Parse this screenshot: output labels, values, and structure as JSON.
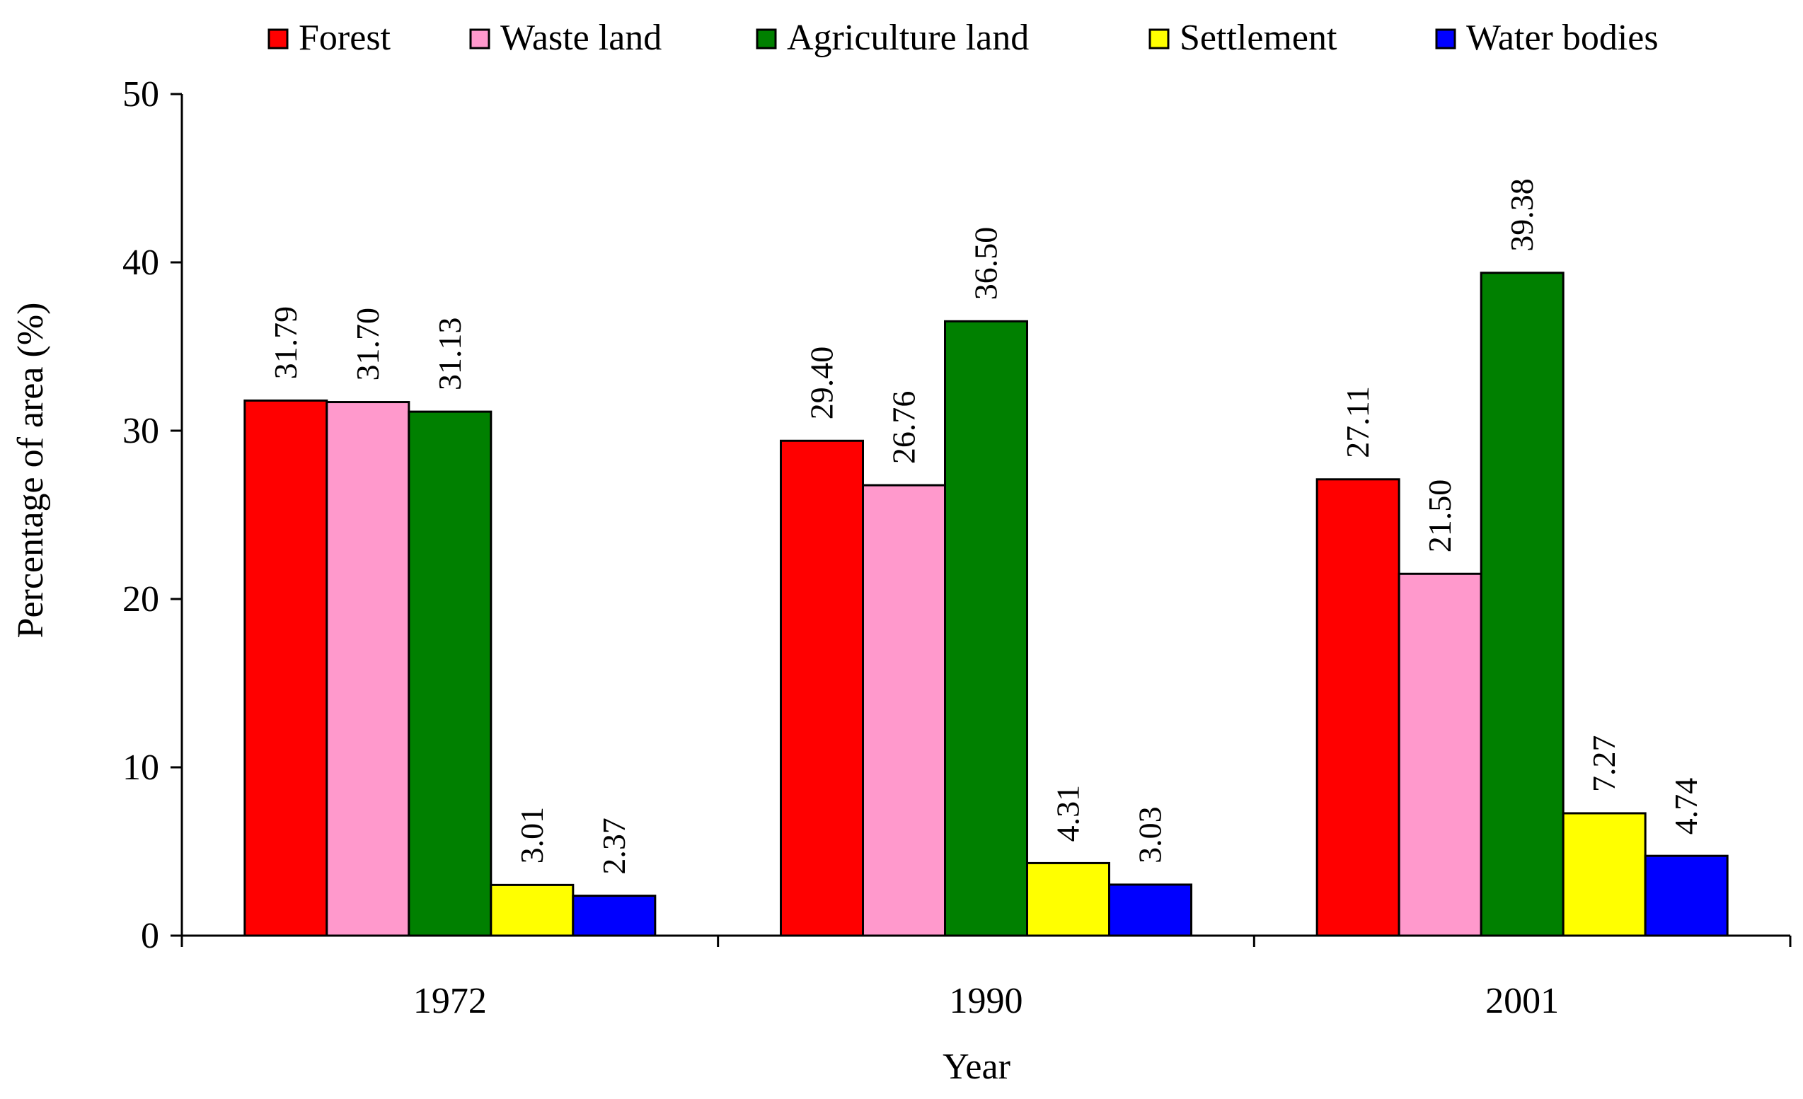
{
  "chart_data": {
    "type": "bar",
    "title": "",
    "xlabel": "Year",
    "ylabel": "Percentage of area (%)",
    "ylim": [
      0,
      50
    ],
    "yticks": [
      0,
      10,
      20,
      30,
      40,
      50
    ],
    "grid": false,
    "legend_position": "top",
    "categories": [
      "1972",
      "1990",
      "2001"
    ],
    "series": [
      {
        "name": "Forest",
        "color": "#ff0000",
        "values": [
          31.79,
          29.4,
          27.11
        ],
        "labels": [
          "31.79",
          "29.40",
          "27.11"
        ]
      },
      {
        "name": "Waste land",
        "color": "#ff99cc",
        "values": [
          31.7,
          26.76,
          21.5
        ],
        "labels": [
          "31.70",
          "26.76",
          "21.50"
        ]
      },
      {
        "name": "Agriculture land",
        "color": "#008000",
        "values": [
          31.13,
          36.5,
          39.38
        ],
        "labels": [
          "31.13",
          "36.50",
          "39.38"
        ]
      },
      {
        "name": "Settlement",
        "color": "#ffff00",
        "values": [
          3.01,
          4.31,
          7.27
        ],
        "labels": [
          "3.01",
          "4.31",
          "7.27"
        ]
      },
      {
        "name": "Water bodies",
        "color": "#0000ff",
        "values": [
          2.37,
          3.03,
          4.74
        ],
        "labels": [
          "2.37",
          "3.03",
          "4.74"
        ]
      }
    ]
  }
}
